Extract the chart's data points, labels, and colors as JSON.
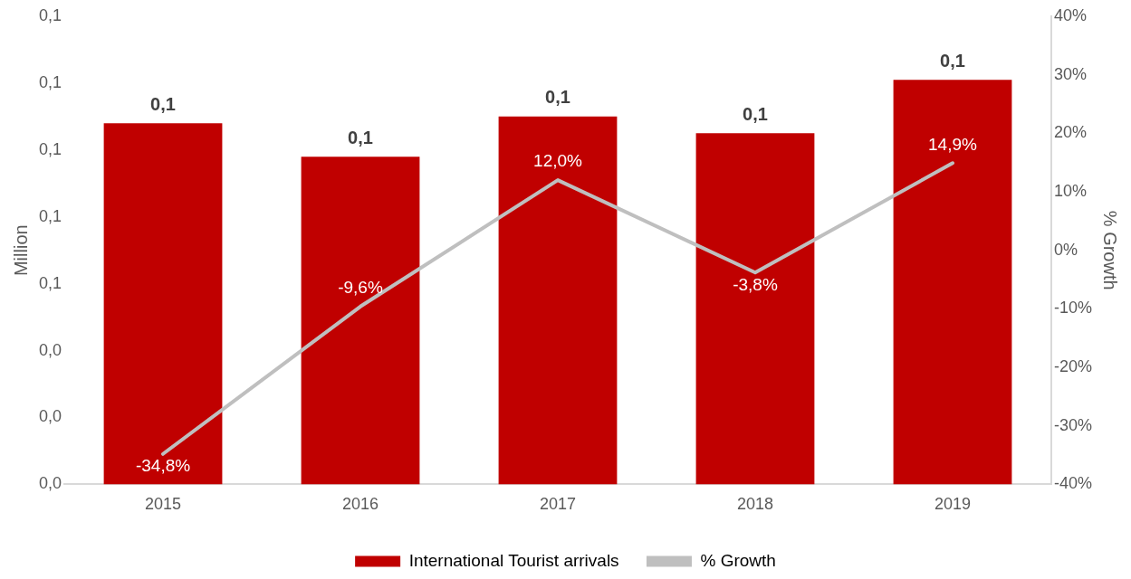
{
  "chart_data": {
    "type": "bar",
    "categories": [
      "2015",
      "2016",
      "2017",
      "2018",
      "2019"
    ],
    "ylabel": "Million",
    "y2label": "% Growth",
    "ylim": [
      0,
      0.14
    ],
    "yticks": [
      {
        "value": 0,
        "label": "0,0"
      },
      {
        "value": 0.02,
        "label": "0,0"
      },
      {
        "value": 0.04,
        "label": "0,0"
      },
      {
        "value": 0.06,
        "label": "0,1"
      },
      {
        "value": 0.08,
        "label": "0,1"
      },
      {
        "value": 0.1,
        "label": "0,1"
      },
      {
        "value": 0.12,
        "label": "0,1"
      },
      {
        "value": 0.14,
        "label": "0,1"
      }
    ],
    "y2lim": [
      -40,
      40
    ],
    "y2ticks": [
      {
        "value": -40,
        "label": "-40%"
      },
      {
        "value": -30,
        "label": "-30%"
      },
      {
        "value": -20,
        "label": "-20%"
      },
      {
        "value": -10,
        "label": "-10%"
      },
      {
        "value": 0,
        "label": "0%"
      },
      {
        "value": 10,
        "label": "10%"
      },
      {
        "value": 20,
        "label": "20%"
      },
      {
        "value": 30,
        "label": "30%"
      },
      {
        "value": 40,
        "label": "40%"
      }
    ],
    "series": [
      {
        "name": "International Tourist arrivals",
        "color": "#c00000",
        "values": [
          0.108,
          0.098,
          0.11,
          0.105,
          0.121
        ],
        "value_labels": [
          "0,1",
          "0,1",
          "0,1",
          "0,1",
          "0,1"
        ]
      },
      {
        "name": "% Growth",
        "type": "line",
        "axis": "y2",
        "color": "#bfbfbf",
        "values": [
          -34.8,
          -9.6,
          12.0,
          -3.8,
          14.9
        ],
        "value_labels": [
          "-34,8%",
          "-9,6%",
          "12,0%",
          "-3,8%",
          "14,9%"
        ]
      }
    ],
    "grid": false,
    "legend": "bottom",
    "marker": "none",
    "line_style": "solid"
  }
}
